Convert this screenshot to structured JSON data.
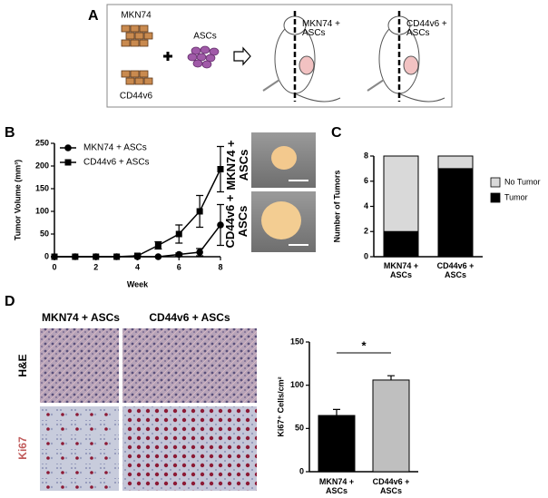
{
  "panel_a": {
    "letter": "A",
    "cell_line_1": "MKN74",
    "cell_line_2": "CD44v6",
    "stem_cells": "ASCs",
    "mouse_1": "MKN74 + ASCs",
    "mouse_2": "CD44v6 + ASCs"
  },
  "panel_b": {
    "letter": "B",
    "photo_labels": [
      "MKN74 + ASCs",
      "CD44v6 + ASCs"
    ]
  },
  "panel_c": {
    "letter": "C"
  },
  "panel_d": {
    "letter": "D",
    "columns": [
      "MKN74 + ASCs",
      "CD44v6 + ASCs"
    ],
    "rows": [
      "H&E",
      "Ki67"
    ]
  },
  "chart_data": [
    {
      "type": "line",
      "x": [
        0,
        1,
        2,
        3,
        4,
        5,
        6,
        7,
        8
      ],
      "xlabel": "Week",
      "ylabel": "Tumor Volume (mm³)",
      "xlim": [
        0,
        8
      ],
      "xticks": [
        0,
        2,
        4,
        6,
        8
      ],
      "ylim": [
        0,
        250
      ],
      "yticks": [
        0,
        50,
        100,
        150,
        200,
        250
      ],
      "legend": "upper left",
      "series": [
        {
          "name": "MKN74 + ASCs",
          "color": "#000000",
          "marker": "circle",
          "values": [
            0,
            0,
            0,
            0,
            0,
            0,
            5,
            10,
            70
          ],
          "errors": [
            0,
            0,
            0,
            0,
            0,
            0,
            3,
            8,
            45
          ]
        },
        {
          "name": "CD44v6 + ASCs",
          "color": "#000000",
          "marker": "square",
          "values": [
            0,
            0,
            0,
            0,
            2,
            25,
            50,
            100,
            193
          ],
          "errors": [
            0,
            0,
            0,
            0,
            1,
            8,
            20,
            35,
            50
          ]
        }
      ]
    },
    {
      "type": "stacked_bar",
      "ylabel": "Number of Tumors",
      "categories": [
        "MKN74 + ASCs",
        "CD44v6 + ASCs"
      ],
      "ylim": [
        0,
        8
      ],
      "yticks": [
        0,
        2,
        4,
        6,
        8
      ],
      "legend": "right",
      "series": [
        {
          "name": "Tumor",
          "color": "#000000",
          "values": [
            2,
            7
          ]
        },
        {
          "name": "No Tumor",
          "color": "#d9d9d9",
          "values": [
            6,
            1
          ]
        }
      ]
    },
    {
      "type": "bar",
      "ylabel": "Ki67⁺ Cells/cm²",
      "categories": [
        "MKN74 + ASCs",
        "CD44v6 + ASCs"
      ],
      "values": [
        65,
        106
      ],
      "errors": [
        7,
        5
      ],
      "colors": [
        "#000000",
        "#bfbfbf"
      ],
      "ylim": [
        0,
        150
      ],
      "yticks": [
        0,
        50,
        100,
        150
      ],
      "significance": "*"
    }
  ]
}
